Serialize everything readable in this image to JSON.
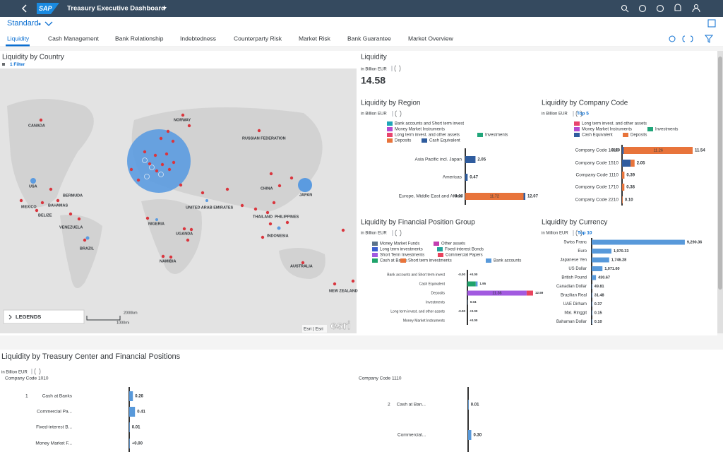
{
  "header": {
    "logo": "SAP",
    "title": "Treasury Executive Dashboard",
    "variant": "Standard"
  },
  "tabs": [
    "Liquidity",
    "Cash Management",
    "Bank Relationship",
    "Indebtedness",
    "Counterparty Risk",
    "Market Risk",
    "Bank Guarantee",
    "Market Overview"
  ],
  "map": {
    "title": "Liquidity by Country",
    "filter": "1 Filter",
    "countries": [
      "CANADA",
      "NORWAY",
      "RUSSIAN FEDERATION",
      "USA",
      "BERMUDA",
      "MEXICO",
      "BAHAMAS",
      "BELIZE",
      "VENEZUELA",
      "BRAZIL",
      "CHINA",
      "JAPAN",
      "UNITED ARAB EMIRATES",
      "NIGERIA",
      "THAILAND",
      "PHILIPPINES",
      "INDONESIA",
      "UGANDA",
      "NAMIBIA",
      "AUSTRALIA",
      "NEW ZEALAND"
    ],
    "legends": "LEGENDS",
    "scale_km": "2000km",
    "scale_mi": "1000mi",
    "attribution": "Esri | Esri",
    "logo": "esri"
  },
  "kpi": {
    "title": "Liquidity",
    "unit": "in Billion EUR",
    "value": 14.58
  },
  "bottom": {
    "title": "Liquidity by Treasury Center and Financial Positions",
    "unit": "in Billion EUR"
  },
  "chart_data": [
    {
      "type": "bar",
      "orientation": "horizontal",
      "stacked": true,
      "title": "Liquidity by Region",
      "unit": "in Billion EUR",
      "categories": [
        "Asia Pacific incl. Japan",
        "Americas",
        "Europe, Middle East and Africa"
      ],
      "series": [
        {
          "name": "Bank accounts and Short term invest",
          "color": "#1ea5b8",
          "values": [
            null,
            null,
            null
          ]
        },
        {
          "name": "Money Market Instruments",
          "color": "#b44ad0",
          "values": [
            null,
            null,
            null
          ]
        },
        {
          "name": "Long term invest. and other assets",
          "color": "#e8446e",
          "values": [
            null,
            null,
            null
          ]
        },
        {
          "name": "Investments",
          "color": "#21a67a",
          "values": [
            null,
            null,
            null
          ]
        },
        {
          "name": "Deposits",
          "color": "#e8743b",
          "values": [
            null,
            null,
            11.72
          ]
        },
        {
          "name": "Cash Equivalent",
          "color": "#2f5c9e",
          "values": [
            2.05,
            0.47,
            0.35
          ]
        }
      ],
      "totals": [
        2.05,
        0.47,
        12.07
      ],
      "negative_labels": [
        null,
        null,
        "-0.00"
      ],
      "xlim": [
        0,
        12.5
      ]
    },
    {
      "type": "bar",
      "orientation": "horizontal",
      "stacked": true,
      "title": "Liquidity by Company Code",
      "unit": "in Billion EUR",
      "filter": "Top 5",
      "categories": [
        "Company Code 1010",
        "Company Code 1510",
        "Company Code 1110",
        "Company Code 1710",
        "Company Code 2210"
      ],
      "series": [
        {
          "name": "Long term invest. and other assets",
          "color": "#e8446e",
          "values": [
            null,
            null,
            null,
            null,
            null
          ]
        },
        {
          "name": "Money Market Instruments",
          "color": "#b44ad0",
          "values": [
            null,
            null,
            null,
            null,
            null
          ]
        },
        {
          "name": "Investments",
          "color": "#21a67a",
          "values": [
            null,
            null,
            null,
            null,
            null
          ]
        },
        {
          "name": "Cash Equivalent",
          "color": "#2f5c9e",
          "values": [
            0.28,
            1.4,
            null,
            null,
            null
          ]
        },
        {
          "name": "Deposits",
          "color": "#e8743b",
          "values": [
            11.26,
            0.65,
            0.39,
            0.38,
            0.1
          ]
        }
      ],
      "totals": [
        11.54,
        2.05,
        0.39,
        0.38,
        0.1
      ],
      "total_labels": [
        "11.54",
        "2.05",
        "0.39",
        "0.38",
        "0.10"
      ],
      "negative_labels": [
        "-0.00",
        null,
        null,
        null,
        null
      ],
      "xlim": [
        0,
        12
      ]
    },
    {
      "type": "bar",
      "orientation": "horizontal",
      "stacked": true,
      "title": "Liquidity by Financial Position Group",
      "unit": "in Billion EUR",
      "categories": [
        "Bank accounts and Short term invest",
        "Cash Equivalent",
        "Deposits",
        "Investments",
        "Long term invest. and other assets",
        "Money Market Instruments"
      ],
      "series": [
        {
          "name": "Money Market Funds",
          "color": "#5b738b",
          "values": [
            null,
            null,
            null,
            0.04,
            null,
            null
          ]
        },
        {
          "name": "Other assets",
          "color": "#c33fb0",
          "values": [
            null,
            null,
            null,
            null,
            null,
            null
          ]
        },
        {
          "name": "Long term investments",
          "color": "#3b5fcf",
          "values": [
            null,
            null,
            null,
            null,
            null,
            null
          ]
        },
        {
          "name": "Fixed-interest Bonds",
          "color": "#22a39a",
          "values": [
            null,
            null,
            null,
            null,
            null,
            null
          ]
        },
        {
          "name": "Short Term Investments",
          "color": "#a25ae0",
          "values": [
            null,
            null,
            11.36,
            null,
            null,
            null
          ]
        },
        {
          "name": "Commercial Papers",
          "color": "#e8445e",
          "values": [
            null,
            null,
            1.23,
            null,
            null,
            null
          ]
        },
        {
          "name": "Cash at Banks",
          "color": "#1fa36b",
          "values": [
            null,
            1.6,
            null,
            null,
            null,
            null
          ]
        },
        {
          "name": "Short term investments",
          "color": "#e8743b",
          "values": [
            null,
            null,
            null,
            null,
            null,
            null
          ]
        },
        {
          "name": "Bank accounts",
          "color": "#5899da",
          "values": [
            null,
            0.35,
            null,
            null,
            null,
            null
          ]
        }
      ],
      "totals": [
        0,
        1.95,
        12.59,
        0.04,
        0,
        0
      ],
      "total_labels": [
        "+0.00",
        "1.95",
        "12.59",
        "0.04",
        "+0.00",
        "+0.00"
      ],
      "negative_labels": [
        "-0.00",
        null,
        null,
        null,
        "-0.00",
        null
      ],
      "xlim": [
        0,
        13
      ]
    },
    {
      "type": "bar",
      "orientation": "horizontal",
      "title": "Liquidity by Currency",
      "unit": "in Million EUR",
      "filter": "Top 10",
      "categories": [
        "Swiss Franc",
        "Euro",
        "Japanese Yen",
        "US Dollar",
        "British Pound",
        "Canadian Dollar",
        "Brazilian Real",
        "UAE Dirham",
        "Mal. Ringgit",
        "Bahaman Dollar"
      ],
      "series": [
        {
          "color": "#5899da",
          "values": [
            9290.36,
            1970.33,
            1746.28,
            1071.6,
            430.67,
            49.81,
            31.48,
            0.37,
            0.15,
            0.1
          ],
          "value_labels": [
            "9,290.36",
            "1,970.33",
            "1,746.28",
            "1,071.60",
            "430.67",
            "49.81",
            "31.48",
            "0.37",
            "0.15",
            "0.10"
          ]
        }
      ],
      "xlim": [
        0,
        10000
      ]
    },
    {
      "type": "bar",
      "orientation": "horizontal",
      "title": "Company Code 1010",
      "group": "1",
      "categories": [
        "Cash at Banks",
        "Commercial Pa...",
        "Fixed-interest B...",
        "Money Market F..."
      ],
      "series": [
        {
          "color": "#5899da",
          "values": [
            0.26,
            0.41,
            0.01,
            0
          ],
          "value_labels": [
            "0.26",
            "0.41",
            "0.01",
            "+0.00"
          ]
        }
      ],
      "xlim": [
        0,
        20
      ]
    },
    {
      "type": "bar",
      "orientation": "horizontal",
      "title": "Company Code 1110",
      "group": "2",
      "categories": [
        "Cash at Ban...",
        "Commercial..."
      ],
      "series": [
        {
          "color": "#5899da",
          "values": [
            0.01,
            0.3
          ],
          "value_labels": [
            "0.01",
            "0.30"
          ]
        }
      ],
      "xlim": [
        0,
        20
      ]
    }
  ]
}
